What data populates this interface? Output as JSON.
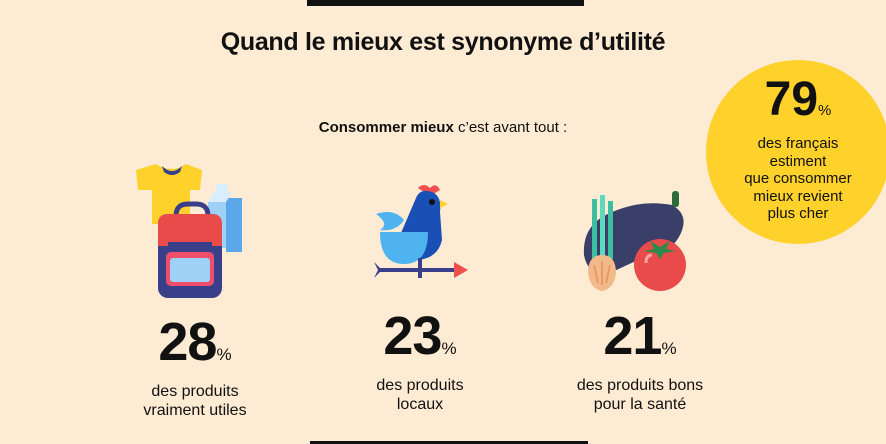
{
  "title": "Quand le mieux est synonyme d’utilité",
  "intro": {
    "bold": "Consommer mieux",
    "rest": " c’est avant tout :"
  },
  "badge": {
    "value": "79",
    "unit": "%",
    "lines": [
      "des français",
      "estiment",
      "que consommer",
      "mieux revient",
      "plus cher"
    ]
  },
  "chart_data": {
    "type": "table",
    "title": "Quand le mieux est synonyme d’utilité",
    "items": [
      {
        "value": 28,
        "unit": "%",
        "lines": [
          "des produits",
          "vraiment utiles"
        ],
        "icon": "backpack-clothes-icon"
      },
      {
        "value": 23,
        "unit": "%",
        "lines": [
          "des produits",
          "locaux"
        ],
        "icon": "rooster-weathervane-icon"
      },
      {
        "value": 21,
        "unit": "%",
        "lines": [
          "des produits bons",
          "pour la santé"
        ],
        "icon": "vegetables-icon"
      }
    ],
    "highlight": {
      "value": 79,
      "unit": "%"
    }
  },
  "colors": {
    "background": "#fdebd3",
    "badge": "#fed12b",
    "text": "#111111"
  }
}
